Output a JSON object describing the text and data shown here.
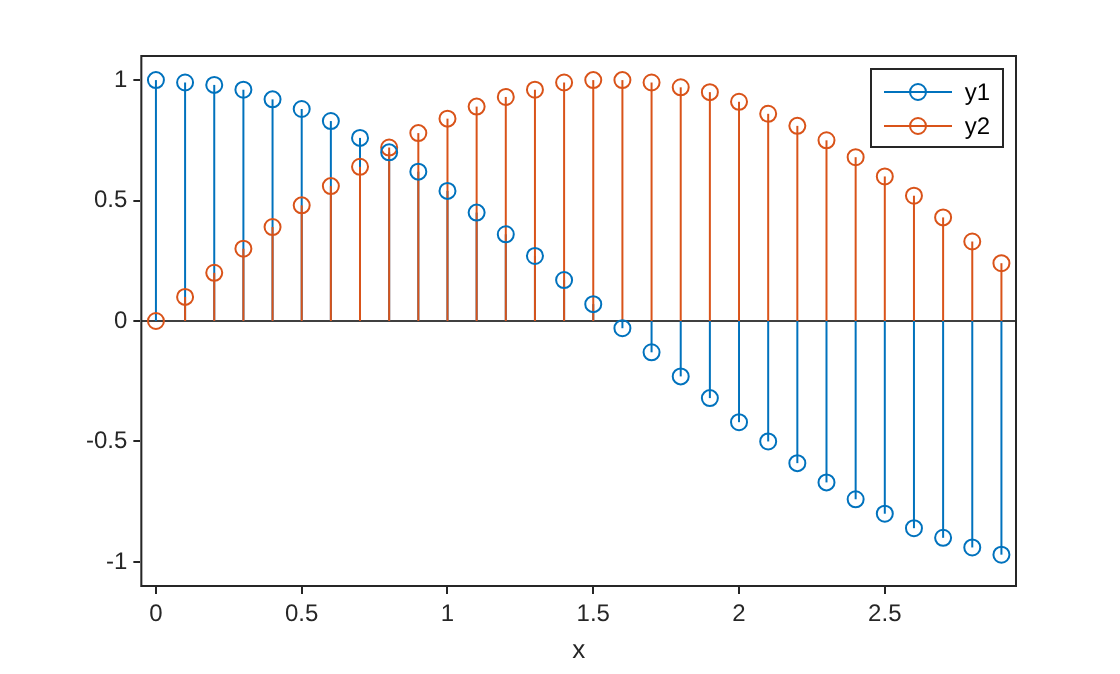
{
  "chart_data": {
    "type": "lollipop",
    "xlabel": "x",
    "x": [
      0,
      0.1,
      0.2,
      0.3,
      0.4,
      0.5,
      0.6,
      0.7,
      0.8,
      0.9,
      1,
      1.1,
      1.2,
      1.3,
      1.4,
      1.5,
      1.6,
      1.7,
      1.8,
      1.9,
      2,
      2.1,
      2.2,
      2.3,
      2.4,
      2.5,
      2.6,
      2.7,
      2.8,
      2.9
    ],
    "series": [
      {
        "name": "y1",
        "color": "#0072bd",
        "values": [
          1.0,
          0.99,
          0.98,
          0.96,
          0.92,
          0.88,
          0.83,
          0.76,
          0.7,
          0.62,
          0.54,
          0.45,
          0.36,
          0.27,
          0.17,
          0.07,
          -0.03,
          -0.13,
          -0.23,
          -0.32,
          -0.42,
          -0.5,
          -0.59,
          -0.67,
          -0.74,
          -0.8,
          -0.86,
          -0.9,
          -0.94,
          -0.97
        ]
      },
      {
        "name": "y2",
        "color": "#d95319",
        "values": [
          0,
          0.1,
          0.2,
          0.3,
          0.39,
          0.48,
          0.56,
          0.64,
          0.72,
          0.78,
          0.84,
          0.89,
          0.93,
          0.96,
          0.99,
          1.0,
          1.0,
          0.99,
          0.97,
          0.95,
          0.91,
          0.86,
          0.81,
          0.75,
          0.68,
          0.6,
          0.52,
          0.43,
          0.33,
          0.24
        ]
      }
    ],
    "xlim": [
      -0.05,
      2.95
    ],
    "xticks": [
      0,
      0.5,
      1,
      1.5,
      2,
      2.5
    ],
    "ylim": [
      -1.1,
      1.1
    ],
    "yticks": [
      -1,
      -0.5,
      0,
      0.5,
      1
    ],
    "ref_lines": [
      {
        "axis": "y",
        "value": 0,
        "color": "#000000"
      }
    ],
    "grid": false,
    "legend": "top right",
    "marker": "circle",
    "line_style": "solid"
  }
}
